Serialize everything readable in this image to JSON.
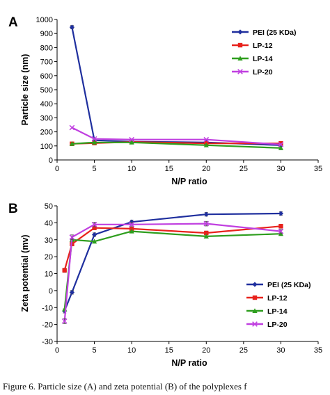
{
  "chart_data": [
    {
      "panel_label": "A",
      "type": "line",
      "xlabel": "N/P ratio",
      "ylabel": "Particle size (nm)",
      "xlim": [
        0,
        35
      ],
      "ylim": [
        0,
        1000
      ],
      "xticks": [
        0,
        5,
        10,
        15,
        20,
        25,
        30,
        35
      ],
      "yticks": [
        0,
        100,
        200,
        300,
        400,
        500,
        600,
        700,
        800,
        900,
        1000
      ],
      "grid": false,
      "legend_position": "top-right",
      "series": [
        {
          "name": "PEI (25 KDa)",
          "color": "#1F2F9E",
          "marker": "diamond",
          "x": [
            2,
            5,
            10,
            20,
            30
          ],
          "y": [
            945,
            140,
            130,
            125,
            105
          ]
        },
        {
          "name": "LP-12",
          "color": "#E8221C",
          "marker": "square",
          "x": [
            2,
            5,
            10,
            20,
            30
          ],
          "y": [
            115,
            120,
            128,
            118,
            118
          ]
        },
        {
          "name": "LP-14",
          "color": "#2E9E1E",
          "marker": "triangle",
          "x": [
            2,
            5,
            10,
            20,
            30
          ],
          "y": [
            115,
            125,
            125,
            105,
            85
          ]
        },
        {
          "name": "LP-20",
          "color": "#C03FE0",
          "marker": "x",
          "x": [
            2,
            5,
            10,
            20,
            30
          ],
          "y": [
            230,
            150,
            145,
            145,
            110
          ]
        }
      ]
    },
    {
      "panel_label": "B",
      "type": "line",
      "xlabel": "N/P ratio",
      "ylabel": "Zeta potential (mv)",
      "xlim": [
        0,
        35
      ],
      "ylim": [
        -30,
        50
      ],
      "xticks": [
        0,
        5,
        10,
        15,
        20,
        25,
        30,
        35
      ],
      "yticks": [
        -30,
        -20,
        -10,
        0,
        10,
        20,
        30,
        40,
        50
      ],
      "grid": false,
      "legend_position": "bottom-right",
      "series": [
        {
          "name": "PEI (25 KDa)",
          "color": "#1F2F9E",
          "marker": "diamond",
          "x": [
            1,
            2,
            5,
            10,
            20,
            30
          ],
          "y": [
            -12,
            -1,
            33,
            40.5,
            45,
            45.5
          ]
        },
        {
          "name": "LP-12",
          "color": "#E8221C",
          "marker": "square",
          "x": [
            1,
            2,
            5,
            10,
            20,
            30
          ],
          "y": [
            12,
            27.5,
            37,
            36.5,
            34,
            38
          ]
        },
        {
          "name": "LP-14",
          "color": "#2E9E1E",
          "marker": "triangle",
          "x": [
            1,
            2,
            5,
            10,
            20,
            30
          ],
          "y": [
            -11,
            30,
            29,
            35,
            32,
            33.5
          ]
        },
        {
          "name": "LP-20",
          "color": "#C03FE0",
          "marker": "x",
          "x": [
            1,
            2,
            5,
            10,
            20,
            30
          ],
          "y": [
            -18,
            31.5,
            39,
            39,
            39.5,
            35
          ]
        }
      ]
    }
  ],
  "caption": "Figure 6. Particle size (A) and zeta potential (B) of the polyplexes f"
}
